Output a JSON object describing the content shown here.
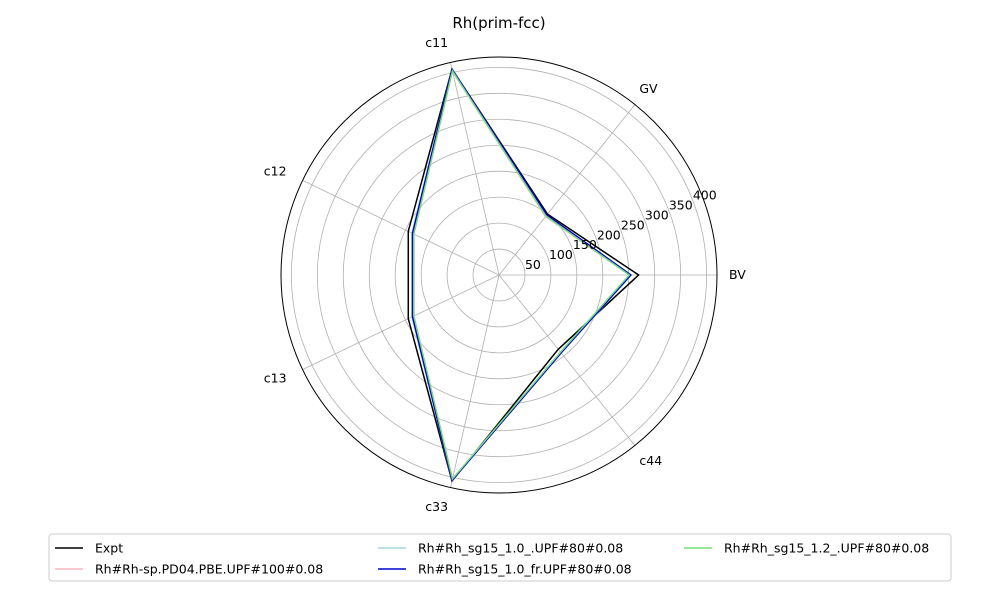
{
  "chart_data": {
    "type": "radar",
    "title": "Rh(prim-fcc)",
    "axes": [
      "BV",
      "GV",
      "c11",
      "c12",
      "c13",
      "c33",
      "c44"
    ],
    "rlim": [
      0,
      420
    ],
    "rticks": [
      50,
      100,
      150,
      200,
      250,
      300,
      350,
      400
    ],
    "grid": true,
    "legend_position": "bottom",
    "series": [
      {
        "name": "Expt",
        "color": "#000000",
        "values": [
          269,
          150,
          407,
          194,
          194,
          407,
          183
        ]
      },
      {
        "name": "Rh#Rh-sp.PD04.PBE.UPF#100#0.08",
        "color": "#ffb6c1",
        "values": [
          252,
          144,
          403,
          183,
          183,
          403,
          191
        ]
      },
      {
        "name": "Rh#Rh_sg15_1.0_.UPF#80#0.08",
        "color": "#a3d9d9",
        "values": [
          255,
          147,
          406,
          186,
          186,
          406,
          192
        ]
      },
      {
        "name": "Rh#Rh_sg15_1.0_fr.UPF#80#0.08",
        "color": "#0000cd",
        "values": [
          254,
          148,
          406,
          185,
          185,
          406,
          192
        ]
      },
      {
        "name": "Rh#Rh_sg15_1.2_.UPF#80#0.08",
        "color": "#77dd77",
        "values": [
          251,
          145,
          403,
          182,
          182,
          403,
          190
        ]
      }
    ]
  }
}
